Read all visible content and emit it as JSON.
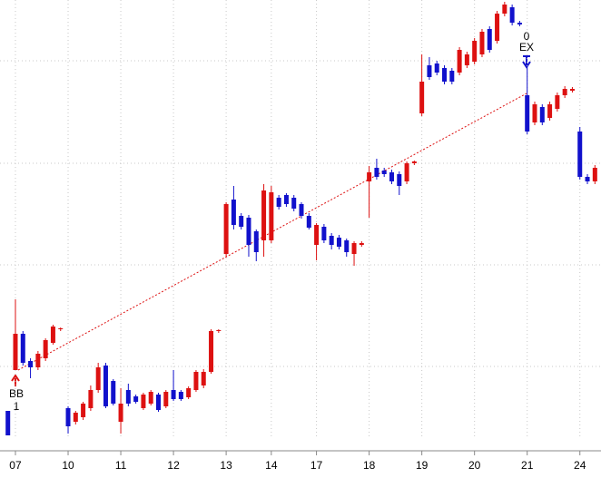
{
  "chart_data": {
    "type": "candlestick",
    "categories": [
      null,
      "07",
      null,
      null,
      null,
      null,
      null,
      null,
      "10",
      null,
      null,
      null,
      null,
      null,
      null,
      "11",
      null,
      null,
      null,
      null,
      null,
      null,
      "12",
      null,
      null,
      null,
      null,
      null,
      null,
      "13",
      null,
      null,
      null,
      null,
      null,
      "14",
      null,
      null,
      null,
      null,
      null,
      "17",
      null,
      null,
      null,
      null,
      null,
      null,
      "18",
      null,
      null,
      null,
      null,
      null,
      null,
      "19",
      null,
      null,
      null,
      null,
      null,
      null,
      "20",
      null,
      null,
      null,
      null,
      null,
      null,
      "21",
      null,
      null,
      null,
      null,
      null,
      null,
      "24",
      null,
      null
    ],
    "open": [
      30,
      75,
      115,
      85,
      78,
      88,
      105,
      120,
      33,
      18,
      23,
      33,
      53,
      80,
      63,
      18,
      53,
      46,
      33,
      38,
      48,
      35,
      53,
      51,
      45,
      53,
      58,
      73,
      118,
      203,
      263,
      245,
      243,
      228,
      218,
      218,
      265,
      268,
      265,
      258,
      245,
      213,
      233,
      223,
      221,
      218,
      203,
      213,
      283,
      298,
      295,
      293,
      291,
      283,
      303,
      358,
      411,
      413,
      408,
      405,
      403,
      411,
      415,
      423,
      451,
      438,
      468,
      475,
      458,
      378,
      348,
      365,
      353,
      363,
      378,
      383,
      338,
      288,
      283
    ],
    "high": [
      30,
      153,
      118,
      88,
      96,
      110,
      125,
      122,
      35,
      30,
      40,
      58,
      83,
      83,
      65,
      55,
      60,
      48,
      50,
      53,
      50,
      53,
      75,
      53,
      57,
      75,
      76,
      120,
      120,
      260,
      278,
      248,
      246,
      230,
      280,
      278,
      268,
      270,
      268,
      260,
      248,
      237,
      236,
      226,
      224,
      220,
      217,
      217,
      300,
      308,
      298,
      296,
      294,
      305,
      306,
      423,
      420,
      416,
      411,
      408,
      431,
      426,
      441,
      451,
      454,
      471,
      481,
      478,
      460,
      410,
      371,
      368,
      371,
      381,
      388,
      387,
      343,
      291,
      301
    ],
    "low": [
      3,
      75,
      80,
      66,
      75,
      85,
      103,
      118,
      5,
      15,
      20,
      30,
      50,
      33,
      36,
      5,
      35,
      38,
      31,
      36,
      29,
      33,
      41,
      41,
      43,
      51,
      55,
      71,
      116,
      200,
      230,
      230,
      200,
      195,
      200,
      215,
      252,
      255,
      250,
      242,
      230,
      196,
      215,
      208,
      208,
      200,
      190,
      211,
      243,
      285,
      288,
      280,
      268,
      280,
      301,
      355,
      395,
      400,
      390,
      390,
      400,
      408,
      412,
      420,
      425,
      435,
      465,
      455,
      454,
      335,
      345,
      345,
      350,
      360,
      375,
      381,
      285,
      280,
      280
    ],
    "close": [
      3,
      115,
      83,
      78,
      93,
      108,
      123,
      121,
      13,
      28,
      38,
      53,
      78,
      35,
      38,
      38,
      38,
      40,
      48,
      51,
      31,
      51,
      43,
      43,
      55,
      73,
      73,
      118,
      119,
      258,
      235,
      233,
      213,
      205,
      273,
      271,
      255,
      258,
      253,
      245,
      232,
      235,
      218,
      213,
      211,
      205,
      215,
      215,
      293,
      288,
      291,
      283,
      278,
      303,
      305,
      393,
      398,
      403,
      393,
      393,
      428,
      423,
      438,
      448,
      428,
      468,
      478,
      458,
      456,
      338,
      368,
      348,
      368,
      378,
      385,
      385,
      288,
      283,
      298
    ],
    "up_color": "#dd1111",
    "down_color": "#1111cc",
    "ylim": [
      0,
      483
    ],
    "annotations": [
      {
        "lines": [
          "BB",
          "1"
        ]
      },
      {
        "lines": [
          "0",
          "EX"
        ]
      }
    ]
  }
}
